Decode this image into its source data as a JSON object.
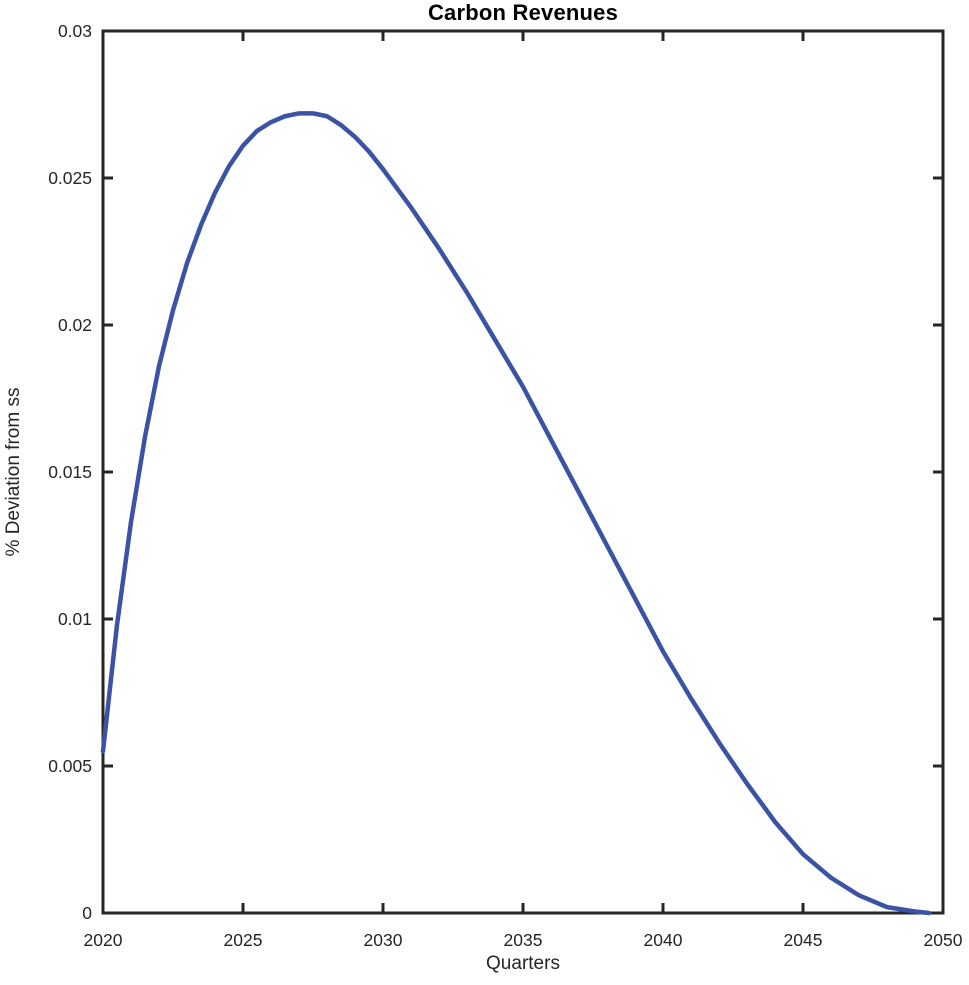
{
  "figure": {
    "title": "Carbon Revenues",
    "xlabel": "Quarters",
    "ylabel": "% Deviation from ss"
  },
  "chart_data": {
    "type": "line",
    "title": "Carbon Revenues",
    "xlabel": "Quarters",
    "ylabel": "% Deviation from ss",
    "xlim": [
      2020,
      2050
    ],
    "ylim": [
      0,
      0.03
    ],
    "xticks": [
      2020,
      2025,
      2030,
      2035,
      2040,
      2045,
      2050
    ],
    "xtick_labels": [
      "2020",
      "2025",
      "2030",
      "2035",
      "2040",
      "2045",
      "2050"
    ],
    "yticks": [
      0,
      0.005,
      0.01,
      0.015,
      0.02,
      0.025,
      0.03
    ],
    "ytick_labels": [
      "0",
      "0.005",
      "0.01",
      "0.015",
      "0.02",
      "0.025",
      "0.03"
    ],
    "grid": false,
    "legend": null,
    "box": true,
    "axis_color": "#262626",
    "background": "#ffffff",
    "series": [
      {
        "name": "Carbon Revenues",
        "color": "#3A53A4",
        "line_width": 4.5,
        "x": [
          2020,
          2020.5,
          2021,
          2021.5,
          2022,
          2022.5,
          2023,
          2023.5,
          2024,
          2024.5,
          2025,
          2025.5,
          2026,
          2026.5,
          2027,
          2027.5,
          2028,
          2028.5,
          2029,
          2029.5,
          2030,
          2031,
          2032,
          2033,
          2034,
          2035,
          2036,
          2037,
          2038,
          2039,
          2040,
          2041,
          2042,
          2043,
          2044,
          2045,
          2046,
          2047,
          2048,
          2049,
          2049.5
        ],
        "y": [
          0.0055,
          0.0098,
          0.0133,
          0.0162,
          0.0186,
          0.0205,
          0.0221,
          0.0234,
          0.0245,
          0.0254,
          0.0261,
          0.0266,
          0.0269,
          0.0271,
          0.0272,
          0.0272,
          0.0271,
          0.0268,
          0.0264,
          0.0259,
          0.0253,
          0.024,
          0.0226,
          0.0211,
          0.0195,
          0.0179,
          0.0161,
          0.0143,
          0.0125,
          0.0107,
          0.0089,
          0.0073,
          0.0058,
          0.0044,
          0.0031,
          0.002,
          0.0012,
          0.0006,
          0.0002,
          5e-05,
          0.0
        ]
      }
    ],
    "peak": {
      "x": 2027.3,
      "y": 0.0272
    }
  }
}
